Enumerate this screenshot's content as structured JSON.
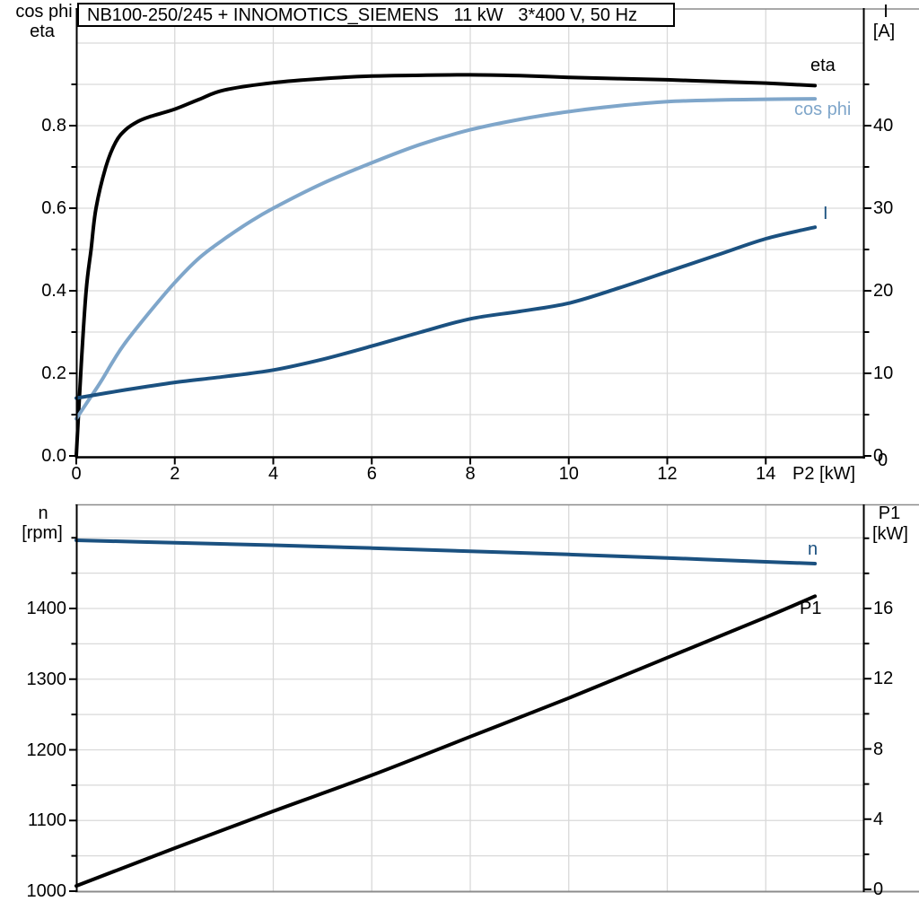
{
  "title": "NB100-250/245 + INNOMOTICS_SIEMENS   11 kW   3*400 V, 50 Hz",
  "colors": {
    "eta": "#000000",
    "cos_phi": "#7FA6CA",
    "current": "#1B5180",
    "speed": "#1B5180",
    "p1": "#000000",
    "grid": "#D9D9D9",
    "frame": "#8C8C8C",
    "axis": "#000000"
  },
  "chart_data": [
    {
      "type": "line",
      "title": "NB100-250/245 + INNOMOTICS_SIEMENS   11 kW   3*400 V, 50 Hz",
      "xlabel": "P2 [kW]",
      "x_axis": {
        "label": "P2 [kW]",
        "range": [
          0,
          16
        ],
        "ticks": [
          0,
          2,
          4,
          6,
          8,
          10,
          12,
          14
        ],
        "tick_labels": [
          "0",
          "2",
          "4",
          "6",
          "8",
          "10",
          "12",
          "14"
        ]
      },
      "y_left": {
        "title_lines": [
          "cos phi",
          "eta"
        ],
        "range": [
          0,
          1.083
        ],
        "ticks": [
          0,
          0.2,
          0.4,
          0.6,
          0.8
        ],
        "tick_labels": [
          "0.0",
          "0.2",
          "0.4",
          "0.6",
          "0.8"
        ],
        "minor_ticks": [
          0.1,
          0.3,
          0.5,
          0.7,
          0.9
        ],
        "grid": [
          0.1,
          0.2,
          0.3,
          0.4,
          0.5,
          0.6,
          0.7,
          0.8,
          0.9,
          1.0
        ]
      },
      "y_right": {
        "title_lines": [
          "I",
          "[A]"
        ],
        "range": [
          0,
          54.1
        ],
        "ticks": [
          0,
          10,
          20,
          30,
          40
        ],
        "tick_labels": [
          "0",
          "10",
          "20",
          "30",
          "40"
        ],
        "minor_ticks": [
          5,
          15,
          25,
          35,
          45
        ],
        "zero_label": "0"
      },
      "grid_x": [
        2,
        4,
        6,
        8,
        10,
        12,
        14
      ],
      "legend_position": "right-inline",
      "series": [
        {
          "name": "eta",
          "label": "eta",
          "axis": "left",
          "color": "#000000",
          "x": [
            0,
            0.1,
            0.2,
            0.3,
            0.4,
            0.6,
            0.8,
            1.0,
            1.25,
            1.5,
            2,
            2.5,
            3,
            4,
            5,
            6,
            7,
            8,
            9,
            10,
            11,
            12,
            13,
            14,
            15
          ],
          "y": [
            0,
            0.22,
            0.4,
            0.5,
            0.6,
            0.7,
            0.76,
            0.79,
            0.81,
            0.822,
            0.84,
            0.864,
            0.886,
            0.904,
            0.914,
            0.92,
            0.922,
            0.923,
            0.921,
            0.917,
            0.914,
            0.911,
            0.907,
            0.903,
            0.897
          ]
        },
        {
          "name": "cos_phi",
          "label": "cos phi",
          "axis": "left",
          "color": "#7FA6CA",
          "x": [
            0,
            0.25,
            0.5,
            0.75,
            1,
            1.5,
            2,
            2.5,
            3,
            3.5,
            4,
            5,
            6,
            7,
            8,
            9,
            10,
            11,
            12,
            13,
            14,
            15
          ],
          "y": [
            0.09,
            0.135,
            0.18,
            0.23,
            0.275,
            0.35,
            0.42,
            0.48,
            0.525,
            0.565,
            0.6,
            0.66,
            0.71,
            0.755,
            0.79,
            0.815,
            0.834,
            0.848,
            0.858,
            0.862,
            0.864,
            0.865
          ]
        },
        {
          "name": "I",
          "label": "I",
          "axis": "right",
          "color": "#1B5180",
          "x": [
            0,
            1,
            2,
            3,
            4,
            5,
            6,
            7,
            8,
            9,
            10,
            11,
            12,
            13,
            14,
            15
          ],
          "y": [
            7.0,
            8.0,
            8.9,
            9.6,
            10.4,
            11.7,
            13.3,
            15.0,
            16.6,
            17.5,
            18.5,
            20.3,
            22.3,
            24.3,
            26.3,
            27.7
          ]
        }
      ]
    },
    {
      "type": "line",
      "xlabel": "",
      "x_axis": {
        "range": [
          0,
          16
        ],
        "ticks": [],
        "tick_labels": []
      },
      "y_left": {
        "title_lines": [
          "n",
          "[rpm]"
        ],
        "range": [
          1000,
          1546
        ],
        "ticks": [
          1000,
          1100,
          1200,
          1300,
          1400
        ],
        "tick_labels": [
          "1000",
          "1100",
          "1200",
          "1300",
          "1400"
        ],
        "minor_ticks": [
          1050,
          1150,
          1250,
          1350,
          1450,
          1500
        ],
        "grid": [
          1050,
          1100,
          1150,
          1200,
          1250,
          1300,
          1350,
          1400,
          1450,
          1500
        ]
      },
      "y_right": {
        "title_lines": [
          "P1",
          "[kW]"
        ],
        "range": [
          0,
          21.9
        ],
        "ticks": [
          0,
          4,
          8,
          12,
          16
        ],
        "tick_labels": [
          "0",
          "4",
          "8",
          "12",
          "16"
        ],
        "minor_ticks": [
          2,
          6,
          10,
          14,
          18,
          20
        ]
      },
      "grid_x": [
        2,
        4,
        6,
        8,
        10,
        12,
        14
      ],
      "series": [
        {
          "name": "n",
          "label": "n",
          "axis": "left",
          "color": "#1B5180",
          "x": [
            0,
            2,
            4,
            6,
            8,
            10,
            12,
            14,
            15
          ],
          "y": [
            1496.5,
            1493,
            1489.5,
            1485.5,
            1481,
            1476.5,
            1471.5,
            1466,
            1463.5
          ]
        },
        {
          "name": "P1",
          "label": "P1",
          "axis": "right",
          "color": "#000000",
          "x": [
            0,
            2,
            4,
            6,
            8,
            10,
            12,
            14,
            15
          ],
          "y": [
            0.2,
            2.35,
            4.45,
            6.5,
            8.7,
            10.9,
            13.2,
            15.5,
            16.7
          ]
        }
      ]
    }
  ]
}
